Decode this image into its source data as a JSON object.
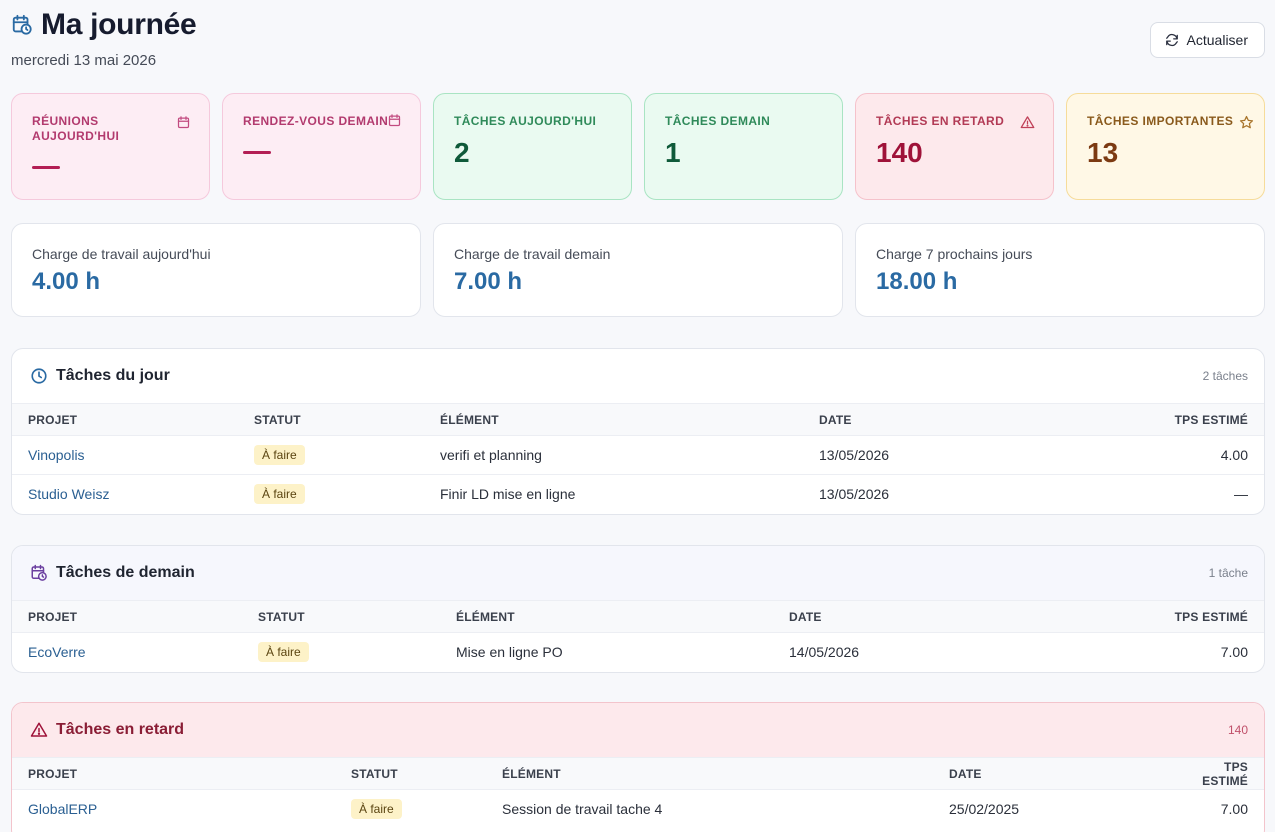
{
  "header": {
    "title": "Ma journée",
    "date": "mercredi 13 mai 2026",
    "refresh_label": "Actualiser"
  },
  "stats": [
    {
      "label": "Réunions aujourd'hui",
      "value": "—",
      "variant": "pink",
      "icon": "calendar-icon"
    },
    {
      "label": "Rendez-vous demain",
      "value": "—",
      "variant": "pink",
      "icon": "calendar-icon"
    },
    {
      "label": "Tâches aujourd'hui",
      "value": "2",
      "variant": "green",
      "icon": ""
    },
    {
      "label": "Tâches demain",
      "value": "1",
      "variant": "green",
      "icon": ""
    },
    {
      "label": "Tâches en retard",
      "value": "140",
      "variant": "red",
      "icon": "warning-icon"
    },
    {
      "label": "Tâches importantes",
      "value": "13",
      "variant": "yellow",
      "icon": "star-icon"
    }
  ],
  "workload": [
    {
      "label": "Charge de travail aujourd'hui",
      "value": "4.00 h"
    },
    {
      "label": "Charge de travail demain",
      "value": "7.00 h"
    },
    {
      "label": "Charge 7 prochains jours",
      "value": "18.00 h"
    }
  ],
  "columns": {
    "project": "PROJET",
    "status": "STATUT",
    "element": "ÉLÉMENT",
    "date": "DATE",
    "estimate": "TPS ESTIMÉ"
  },
  "today": {
    "title": "Tâches du jour",
    "count": "2 tâches",
    "rows": [
      {
        "project": "Vinopolis",
        "status": "À faire",
        "element": "verifi et planning",
        "date": "13/05/2026",
        "estimate": "4.00"
      },
      {
        "project": "Studio Weisz",
        "status": "À faire",
        "element": "Finir LD mise en ligne",
        "date": "13/05/2026",
        "estimate": "—"
      }
    ]
  },
  "tomorrow": {
    "title": "Tâches de demain",
    "count": "1 tâche",
    "rows": [
      {
        "project": "EcoVerre",
        "status": "À faire",
        "element": "Mise en ligne PO",
        "date": "14/05/2026",
        "estimate": "7.00"
      }
    ]
  },
  "late": {
    "title": "Tâches en retard",
    "count": "140",
    "rows": [
      {
        "project": "GlobalERP",
        "status": "À faire",
        "element": "Session de travail tache 4",
        "date": "25/02/2025",
        "estimate": "7.00"
      }
    ]
  },
  "colors": {
    "accent_blue": "#2a6aa3",
    "pink_dash": "#b31e54",
    "late_red": "#9f1239"
  }
}
